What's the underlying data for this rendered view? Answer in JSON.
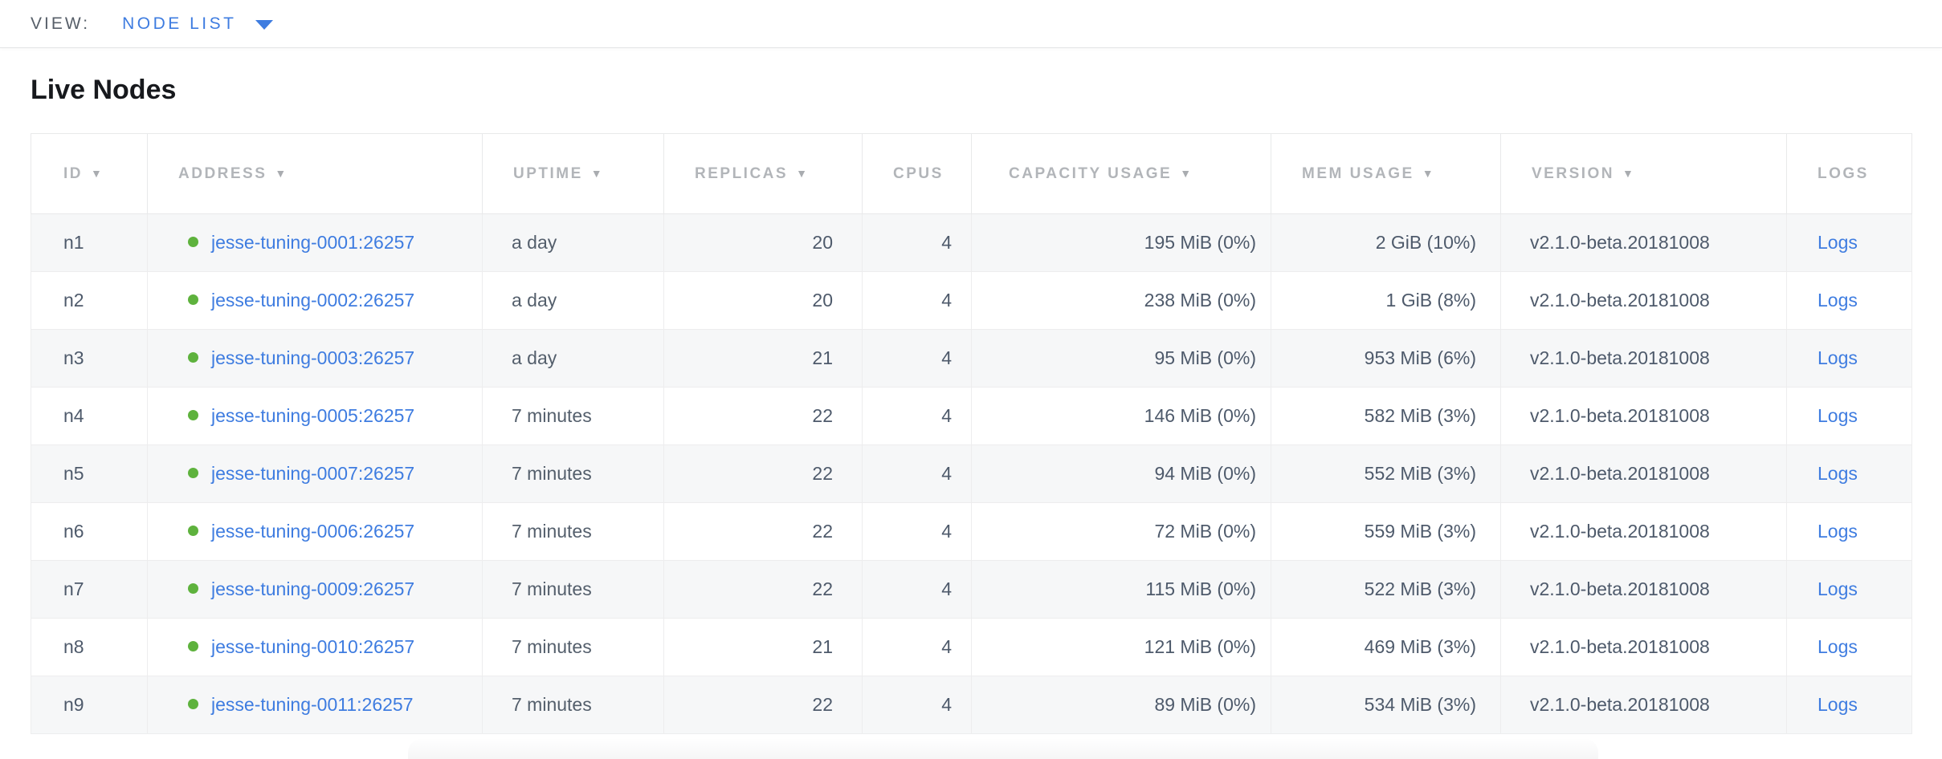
{
  "view_bar": {
    "label": "VIEW:",
    "selected": "NODE LIST"
  },
  "page": {
    "title": "Live Nodes"
  },
  "table": {
    "sort_indicator": "▼",
    "columns": [
      {
        "key": "id",
        "label": "ID",
        "sortable": true
      },
      {
        "key": "address",
        "label": "ADDRESS",
        "sortable": true
      },
      {
        "key": "uptime",
        "label": "UPTIME",
        "sortable": true
      },
      {
        "key": "replicas",
        "label": "REPLICAS",
        "sortable": true
      },
      {
        "key": "cpus",
        "label": "CPUS",
        "sortable": false
      },
      {
        "key": "capacity",
        "label": "CAPACITY USAGE",
        "sortable": true
      },
      {
        "key": "mem",
        "label": "MEM USAGE",
        "sortable": true
      },
      {
        "key": "version",
        "label": "VERSION",
        "sortable": true
      },
      {
        "key": "logs",
        "label": "LOGS",
        "sortable": false
      }
    ],
    "rows": [
      {
        "id": "n1",
        "status": "healthy",
        "address": "jesse-tuning-0001:26257",
        "uptime": "a day",
        "replicas": "20",
        "cpus": "4",
        "capacity": "195 MiB (0%)",
        "mem": "2 GiB (10%)",
        "version": "v2.1.0-beta.20181008",
        "logs": "Logs"
      },
      {
        "id": "n2",
        "status": "healthy",
        "address": "jesse-tuning-0002:26257",
        "uptime": "a day",
        "replicas": "20",
        "cpus": "4",
        "capacity": "238 MiB (0%)",
        "mem": "1 GiB (8%)",
        "version": "v2.1.0-beta.20181008",
        "logs": "Logs"
      },
      {
        "id": "n3",
        "status": "healthy",
        "address": "jesse-tuning-0003:26257",
        "uptime": "a day",
        "replicas": "21",
        "cpus": "4",
        "capacity": "95 MiB (0%)",
        "mem": "953 MiB (6%)",
        "version": "v2.1.0-beta.20181008",
        "logs": "Logs"
      },
      {
        "id": "n4",
        "status": "healthy",
        "address": "jesse-tuning-0005:26257",
        "uptime": "7 minutes",
        "replicas": "22",
        "cpus": "4",
        "capacity": "146 MiB (0%)",
        "mem": "582 MiB (3%)",
        "version": "v2.1.0-beta.20181008",
        "logs": "Logs"
      },
      {
        "id": "n5",
        "status": "healthy",
        "address": "jesse-tuning-0007:26257",
        "uptime": "7 minutes",
        "replicas": "22",
        "cpus": "4",
        "capacity": "94 MiB (0%)",
        "mem": "552 MiB (3%)",
        "version": "v2.1.0-beta.20181008",
        "logs": "Logs"
      },
      {
        "id": "n6",
        "status": "healthy",
        "address": "jesse-tuning-0006:26257",
        "uptime": "7 minutes",
        "replicas": "22",
        "cpus": "4",
        "capacity": "72 MiB (0%)",
        "mem": "559 MiB (3%)",
        "version": "v2.1.0-beta.20181008",
        "logs": "Logs"
      },
      {
        "id": "n7",
        "status": "healthy",
        "address": "jesse-tuning-0009:26257",
        "uptime": "7 minutes",
        "replicas": "22",
        "cpus": "4",
        "capacity": "115 MiB (0%)",
        "mem": "522 MiB (3%)",
        "version": "v2.1.0-beta.20181008",
        "logs": "Logs"
      },
      {
        "id": "n8",
        "status": "healthy",
        "address": "jesse-tuning-0010:26257",
        "uptime": "7 minutes",
        "replicas": "21",
        "cpus": "4",
        "capacity": "121 MiB (0%)",
        "mem": "469 MiB (3%)",
        "version": "v2.1.0-beta.20181008",
        "logs": "Logs"
      },
      {
        "id": "n9",
        "status": "healthy",
        "address": "jesse-tuning-0011:26257",
        "uptime": "7 minutes",
        "replicas": "22",
        "cpus": "4",
        "capacity": "89 MiB (0%)",
        "mem": "534 MiB (3%)",
        "version": "v2.1.0-beta.20181008",
        "logs": "Logs"
      }
    ]
  },
  "colors": {
    "accent_blue": "#3e7ce0",
    "healthy_dot_green": "#5eb23d",
    "header_text_gray": "#b2b5b9",
    "body_text_slate": "#4e5a6b"
  }
}
